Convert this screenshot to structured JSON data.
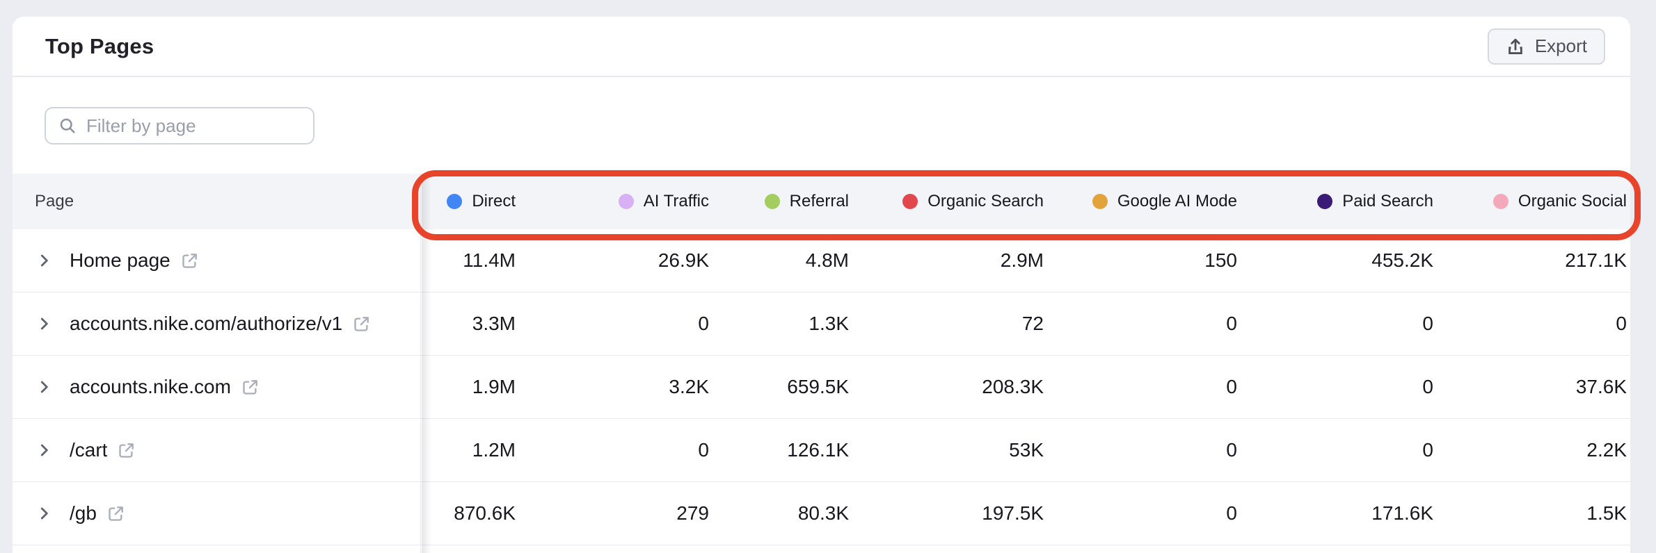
{
  "panel": {
    "title": "Top Pages"
  },
  "toolbar": {
    "export_label": "Export"
  },
  "filter": {
    "placeholder": "Filter by page",
    "value": ""
  },
  "table": {
    "page_column_header": "Page",
    "channels": [
      {
        "label": "Direct",
        "color": "#4285f4"
      },
      {
        "label": "AI Traffic",
        "color": "#d7b0f5"
      },
      {
        "label": "Referral",
        "color": "#a3cd5f"
      },
      {
        "label": "Organic Search",
        "color": "#e2474d"
      },
      {
        "label": "Google AI Mode",
        "color": "#e2a33b"
      },
      {
        "label": "Paid Search",
        "color": "#3a1c78"
      },
      {
        "label": "Organic Social",
        "color": "#f4a9ba"
      }
    ],
    "rows": [
      {
        "page": "Home page",
        "values": [
          "11.4M",
          "26.9K",
          "4.8M",
          "2.9M",
          "150",
          "455.2K",
          "217.1K"
        ]
      },
      {
        "page": "accounts.nike.com/authorize/v1",
        "values": [
          "3.3M",
          "0",
          "1.3K",
          "72",
          "0",
          "0",
          "0"
        ]
      },
      {
        "page": "accounts.nike.com",
        "values": [
          "1.9M",
          "3.2K",
          "659.5K",
          "208.3K",
          "0",
          "0",
          "37.6K"
        ]
      },
      {
        "page": "/cart",
        "values": [
          "1.2M",
          "0",
          "126.1K",
          "53K",
          "0",
          "0",
          "2.2K"
        ]
      },
      {
        "page": "/gb",
        "values": [
          "870.6K",
          "279",
          "80.3K",
          "197.5K",
          "0",
          "171.6K",
          "1.5K"
        ]
      }
    ]
  },
  "annotation": {
    "shape": "rounded-rectangle-highlight",
    "color": "#e8432b"
  },
  "icons": {
    "export": "upload-icon",
    "filter": "search-icon",
    "row_expand": "chevron-right-icon",
    "page_link": "external-link-icon"
  }
}
